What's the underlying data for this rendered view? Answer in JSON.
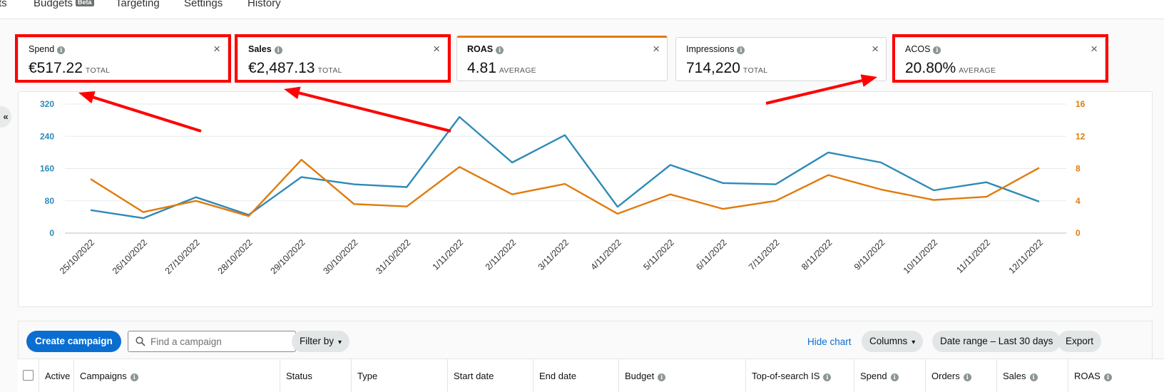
{
  "nav": {
    "tabs": [
      {
        "label": "ts"
      },
      {
        "label": "Budgets",
        "badge": "Beta"
      },
      {
        "label": "Targeting"
      },
      {
        "label": "Settings"
      },
      {
        "label": "History"
      }
    ]
  },
  "metrics": [
    {
      "label": "Spend",
      "value": "€517.22",
      "unit": "TOTAL",
      "highlighted": true
    },
    {
      "label": "Sales",
      "value": "€2,487.13",
      "unit": "TOTAL",
      "highlighted": true
    },
    {
      "label": "ROAS",
      "value": "4.81",
      "unit": "AVERAGE",
      "highlighted": false
    },
    {
      "label": "Impressions",
      "value": "714,220",
      "unit": "TOTAL",
      "highlighted": false
    },
    {
      "label": "ACOS",
      "value": "20.80%",
      "unit": "AVERAGE",
      "highlighted": true
    }
  ],
  "icons": {
    "close": "close-icon",
    "info": "info-icon",
    "collapse": "double-chevron-left-icon",
    "search": "search-icon"
  },
  "collapse_glyph": "«",
  "chart_data": {
    "type": "line",
    "categories": [
      "25/10/2022",
      "26/10/2022",
      "27/10/2022",
      "28/10/2022",
      "29/10/2022",
      "30/10/2022",
      "31/10/2022",
      "1/11/2022",
      "2/11/2022",
      "3/11/2022",
      "4/11/2022",
      "5/11/2022",
      "6/11/2022",
      "7/11/2022",
      "8/11/2022",
      "9/11/2022",
      "10/11/2022",
      "11/11/2022",
      "12/11/2022"
    ],
    "series": [
      {
        "axis": "left",
        "color": "#2e8ab8",
        "values": [
          57,
          37,
          89,
          45,
          139,
          121,
          114,
          288,
          175,
          243,
          65,
          169,
          124,
          121,
          200,
          175,
          106,
          126,
          78
        ]
      },
      {
        "axis": "right",
        "color": "#e07b0c",
        "values": [
          6.7,
          2.6,
          4.0,
          2.1,
          9.1,
          3.6,
          3.3,
          8.2,
          4.8,
          6.1,
          2.4,
          4.8,
          3.0,
          4.0,
          7.2,
          5.4,
          4.1,
          4.5,
          8.1
        ]
      }
    ],
    "y_left": {
      "min": 0,
      "max": 320,
      "ticks": [
        "0",
        "80",
        "160",
        "240",
        "320"
      ],
      "color": "#2e8ab8"
    },
    "y_right": {
      "min": 0,
      "max": 16,
      "ticks": [
        "0",
        "4",
        "8",
        "12",
        "16"
      ],
      "color": "#e07b0c"
    },
    "grid": true
  },
  "toolbar": {
    "create_label": "Create campaign",
    "search_placeholder": "Find a campaign",
    "filter_label": "Filter by",
    "hide_chart_label": "Hide chart",
    "columns_label": "Columns",
    "date_range_label": "Date range – Last 30 days",
    "export_label": "Export",
    "chevron_glyph": "▾"
  },
  "table": {
    "columns": [
      {
        "label": "Active",
        "info": false
      },
      {
        "label": "Campaigns",
        "info": true
      },
      {
        "label": "Status",
        "info": false
      },
      {
        "label": "Type",
        "info": false
      },
      {
        "label": "Start date",
        "info": false
      },
      {
        "label": "End date",
        "info": false
      },
      {
        "label": "Budget",
        "info": true
      },
      {
        "label": "Top-of-search IS",
        "info": true
      },
      {
        "label": "Spend",
        "info": true
      },
      {
        "label": "Orders",
        "info": true
      },
      {
        "label": "Sales",
        "info": true
      },
      {
        "label": "ROAS",
        "info": true
      }
    ]
  },
  "annotation_color": "#ff0000"
}
